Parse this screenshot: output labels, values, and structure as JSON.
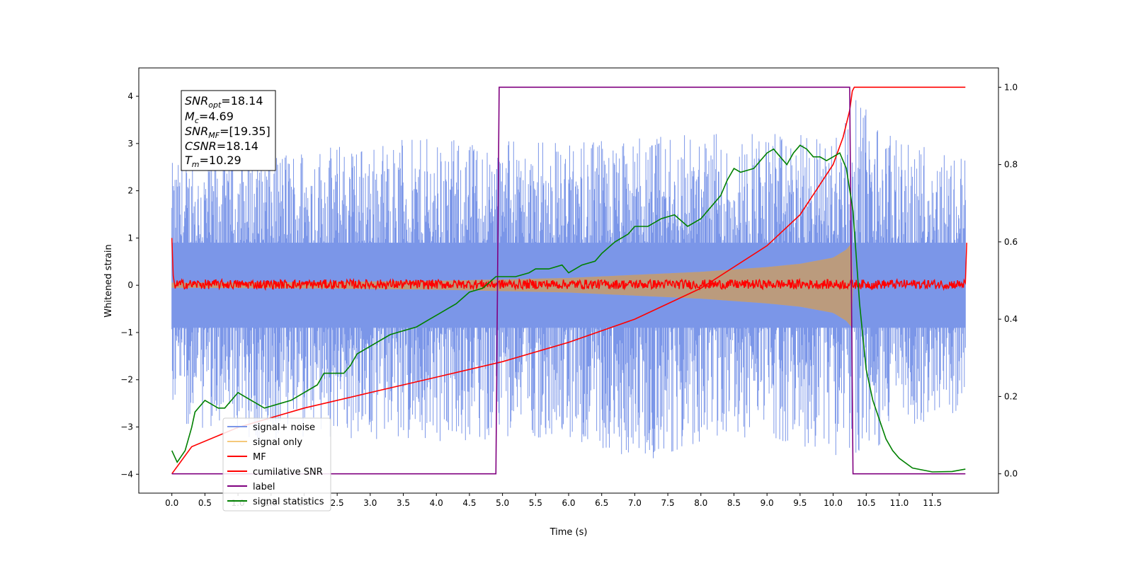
{
  "chart_data": {
    "type": "line",
    "xlabel": "Time (s)",
    "ylabel": "Whitened strain",
    "xlim": [
      -0.5,
      12.5
    ],
    "ylim": [
      -4.4,
      4.6
    ],
    "y2lim": [
      -0.05,
      1.05
    ],
    "x_ticks": [
      "0.0",
      "0.5",
      "1.0",
      "1.5",
      "2.0",
      "2.5",
      "3.0",
      "3.5",
      "4.0",
      "4.5",
      "5.0",
      "5.5",
      "6.0",
      "6.5",
      "7.0",
      "7.5",
      "8.0",
      "8.5",
      "9.0",
      "9.5",
      "10.0",
      "10.5",
      "11.0",
      "11.5"
    ],
    "y_ticks": [
      "−4",
      "−3",
      "−2",
      "−1",
      "0",
      "1",
      "2",
      "3",
      "4"
    ],
    "y2_ticks": [
      "0.0",
      "0.2",
      "0.4",
      "0.6",
      "0.8",
      "1.0"
    ],
    "legend_position": "lower-left",
    "annotation": {
      "snr_opt": {
        "base": "SNR",
        "sub": "opt",
        "value": "=18.14"
      },
      "mc": {
        "base": "M",
        "sub": "c",
        "value": "=4.69"
      },
      "snr_mf": {
        "base": "SNR",
        "sub": "MF",
        "value": "=[19.35]"
      },
      "csnr": {
        "base": "CSNR",
        "value": "=18.14"
      },
      "tm": {
        "base": "T",
        "sub": "m",
        "value": "=10.29"
      }
    },
    "series": [
      {
        "name": "signal+ noise",
        "color": "#7b96e8",
        "axis": "left",
        "kind": "noise",
        "envelope_max": [
          [
            0.0,
            2.6
          ],
          [
            1.0,
            2.9
          ],
          [
            2.0,
            3.0
          ],
          [
            4.0,
            3.1
          ],
          [
            6.0,
            3.0
          ],
          [
            8.0,
            3.2
          ],
          [
            10.0,
            3.2
          ],
          [
            10.3,
            4.0
          ],
          [
            11.0,
            3.0
          ],
          [
            12.0,
            2.8
          ]
        ],
        "envelope_min": [
          [
            0.0,
            -2.8
          ],
          [
            1.0,
            -3.4
          ],
          [
            2.0,
            -3.2
          ],
          [
            4.0,
            -3.3
          ],
          [
            6.0,
            -3.2
          ],
          [
            7.0,
            -3.8
          ],
          [
            8.0,
            -3.3
          ],
          [
            9.0,
            -3.2
          ],
          [
            10.0,
            -3.6
          ],
          [
            10.6,
            -3.5
          ],
          [
            11.0,
            -3.0
          ],
          [
            12.0,
            -2.7
          ]
        ]
      },
      {
        "name": "signal only",
        "color": "#f5c97a",
        "axis": "left",
        "kind": "chirp",
        "envelope": [
          [
            0.0,
            0.05
          ],
          [
            2.0,
            0.06
          ],
          [
            4.0,
            0.09
          ],
          [
            6.0,
            0.15
          ],
          [
            8.0,
            0.28
          ],
          [
            9.0,
            0.38
          ],
          [
            9.5,
            0.45
          ],
          [
            10.0,
            0.58
          ],
          [
            10.2,
            0.75
          ],
          [
            10.29,
            0.9
          ],
          [
            10.3,
            0.0
          ]
        ]
      },
      {
        "name": "MF",
        "color": "#ff0000",
        "axis": "left",
        "kind": "mf",
        "points": [
          [
            0.0,
            1.0
          ],
          [
            0.02,
            0.2
          ],
          [
            0.05,
            0.05
          ],
          [
            12.0,
            0.05
          ],
          [
            12.02,
            0.9
          ]
        ]
      },
      {
        "name": "cumilative SNR",
        "color": "#ff0000",
        "axis": "right",
        "points": [
          [
            0.0,
            0.0
          ],
          [
            0.3,
            0.07
          ],
          [
            1.0,
            0.12
          ],
          [
            2.0,
            0.17
          ],
          [
            3.0,
            0.21
          ],
          [
            4.0,
            0.25
          ],
          [
            5.0,
            0.29
          ],
          [
            6.0,
            0.34
          ],
          [
            7.0,
            0.4
          ],
          [
            8.0,
            0.48
          ],
          [
            9.0,
            0.59
          ],
          [
            9.5,
            0.67
          ],
          [
            10.0,
            0.8
          ],
          [
            10.15,
            0.87
          ],
          [
            10.25,
            0.94
          ],
          [
            10.29,
            0.99
          ],
          [
            10.32,
            1.0
          ],
          [
            12.0,
            1.0
          ]
        ]
      },
      {
        "name": "label",
        "color": "#800080",
        "axis": "right",
        "points": [
          [
            0.0,
            0.0
          ],
          [
            4.9,
            0.0
          ],
          [
            4.95,
            1.0
          ],
          [
            10.25,
            1.0
          ],
          [
            10.3,
            0.0
          ],
          [
            12.0,
            0.0
          ]
        ]
      },
      {
        "name": "signal statistics",
        "color": "#008000",
        "axis": "right",
        "points": [
          [
            0.0,
            0.06
          ],
          [
            0.08,
            0.03
          ],
          [
            0.2,
            0.06
          ],
          [
            0.3,
            0.12
          ],
          [
            0.35,
            0.16
          ],
          [
            0.5,
            0.19
          ],
          [
            0.6,
            0.18
          ],
          [
            0.7,
            0.17
          ],
          [
            0.8,
            0.17
          ],
          [
            0.9,
            0.19
          ],
          [
            1.0,
            0.21
          ],
          [
            1.1,
            0.2
          ],
          [
            1.2,
            0.19
          ],
          [
            1.3,
            0.18
          ],
          [
            1.4,
            0.17
          ],
          [
            1.6,
            0.18
          ],
          [
            1.8,
            0.19
          ],
          [
            2.0,
            0.21
          ],
          [
            2.2,
            0.23
          ],
          [
            2.3,
            0.26
          ],
          [
            2.5,
            0.26
          ],
          [
            2.6,
            0.26
          ],
          [
            2.7,
            0.28
          ],
          [
            2.8,
            0.31
          ],
          [
            3.0,
            0.33
          ],
          [
            3.1,
            0.34
          ],
          [
            3.2,
            0.35
          ],
          [
            3.3,
            0.36
          ],
          [
            3.5,
            0.37
          ],
          [
            3.7,
            0.38
          ],
          [
            3.9,
            0.4
          ],
          [
            4.0,
            0.41
          ],
          [
            4.1,
            0.42
          ],
          [
            4.3,
            0.44
          ],
          [
            4.5,
            0.47
          ],
          [
            4.7,
            0.48
          ],
          [
            4.9,
            0.51
          ],
          [
            5.2,
            0.51
          ],
          [
            5.4,
            0.52
          ],
          [
            5.5,
            0.53
          ],
          [
            5.7,
            0.53
          ],
          [
            5.9,
            0.54
          ],
          [
            6.0,
            0.52
          ],
          [
            6.2,
            0.54
          ],
          [
            6.4,
            0.55
          ],
          [
            6.5,
            0.57
          ],
          [
            6.7,
            0.6
          ],
          [
            6.9,
            0.62
          ],
          [
            7.0,
            0.64
          ],
          [
            7.2,
            0.64
          ],
          [
            7.4,
            0.66
          ],
          [
            7.6,
            0.67
          ],
          [
            7.8,
            0.64
          ],
          [
            8.0,
            0.66
          ],
          [
            8.1,
            0.68
          ],
          [
            8.3,
            0.72
          ],
          [
            8.4,
            0.76
          ],
          [
            8.5,
            0.79
          ],
          [
            8.6,
            0.78
          ],
          [
            8.8,
            0.79
          ],
          [
            8.9,
            0.81
          ],
          [
            9.0,
            0.83
          ],
          [
            9.1,
            0.84
          ],
          [
            9.2,
            0.82
          ],
          [
            9.3,
            0.8
          ],
          [
            9.4,
            0.83
          ],
          [
            9.5,
            0.85
          ],
          [
            9.6,
            0.84
          ],
          [
            9.7,
            0.82
          ],
          [
            9.8,
            0.82
          ],
          [
            9.9,
            0.81
          ],
          [
            10.0,
            0.82
          ],
          [
            10.1,
            0.83
          ],
          [
            10.2,
            0.79
          ],
          [
            10.3,
            0.68
          ],
          [
            10.4,
            0.44
          ],
          [
            10.5,
            0.27
          ],
          [
            10.6,
            0.19
          ],
          [
            10.7,
            0.14
          ],
          [
            10.8,
            0.09
          ],
          [
            10.9,
            0.06
          ],
          [
            11.0,
            0.04
          ],
          [
            11.2,
            0.015
          ],
          [
            11.5,
            0.005
          ],
          [
            11.8,
            0.006
          ],
          [
            12.0,
            0.012
          ]
        ]
      }
    ]
  }
}
